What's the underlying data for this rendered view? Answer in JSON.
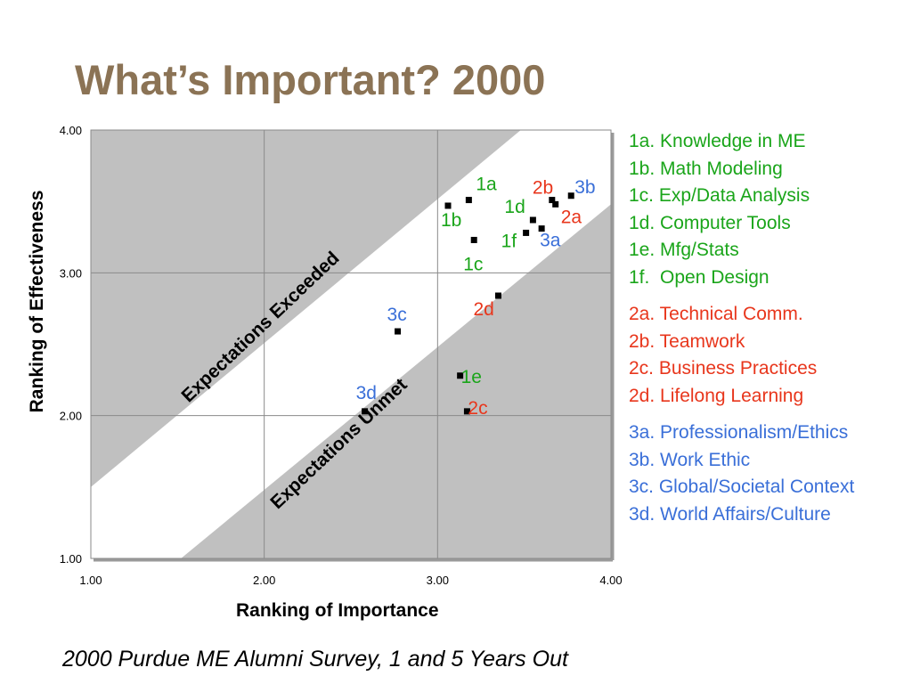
{
  "slide": {
    "title": "What’s Important?  2000",
    "caption": "2000 Purdue ME Alumni Survey, 1 and 5 Years Out"
  },
  "chart_data": {
    "type": "scatter",
    "xlabel": "Ranking of Importance",
    "ylabel": "Ranking of Effectiveness",
    "xlim": [
      1.0,
      4.0
    ],
    "ylim": [
      1.0,
      4.0
    ],
    "x_ticks": [
      "1.00",
      "2.00",
      "3.00",
      "4.00"
    ],
    "y_ticks": [
      "1.00",
      "2.00",
      "3.00",
      "4.00"
    ],
    "grid": true,
    "region_labels": {
      "upper": "Expectations Exceeded",
      "lower": "Expectations Unmet"
    },
    "colors": {
      "group1": "#1aa51a",
      "group2": "#e8361c",
      "group3": "#3a6fd8",
      "shaded": "#c0c0c0",
      "title": "#8b7355"
    },
    "points": [
      {
        "label": "1a",
        "x": 3.18,
        "y": 3.51,
        "group": 1
      },
      {
        "label": "1b",
        "x": 3.06,
        "y": 3.47,
        "group": 1
      },
      {
        "label": "1c",
        "x": 3.21,
        "y": 3.23,
        "group": 1
      },
      {
        "label": "1d",
        "x": 3.55,
        "y": 3.37,
        "group": 1
      },
      {
        "label": "1e",
        "x": 3.13,
        "y": 2.28,
        "group": 1
      },
      {
        "label": "1f",
        "x": 3.51,
        "y": 3.28,
        "group": 1
      },
      {
        "label": "2a",
        "x": 3.68,
        "y": 3.48,
        "group": 2
      },
      {
        "label": "2b",
        "x": 3.66,
        "y": 3.51,
        "group": 2
      },
      {
        "label": "2c",
        "x": 3.17,
        "y": 2.03,
        "group": 2
      },
      {
        "label": "2d",
        "x": 3.35,
        "y": 2.84,
        "group": 2
      },
      {
        "label": "3a",
        "x": 3.6,
        "y": 3.31,
        "group": 3
      },
      {
        "label": "3b",
        "x": 3.77,
        "y": 3.54,
        "group": 3
      },
      {
        "label": "3c",
        "x": 2.77,
        "y": 2.59,
        "group": 3
      },
      {
        "label": "3d",
        "x": 2.58,
        "y": 2.03,
        "group": 3
      }
    ]
  },
  "legend": {
    "group1": [
      "1a. Knowledge in ME",
      "1b. Math Modeling",
      "1c. Exp/Data Analysis",
      "1d. Computer Tools",
      "1e. Mfg/Stats",
      "1f.  Open Design"
    ],
    "group2": [
      "2a. Technical Comm.",
      "2b. Teamwork",
      "2c. Business Practices",
      "2d. Lifelong Learning"
    ],
    "group3": [
      "3a. Professionalism/Ethics",
      "3b. Work Ethic",
      "3c. Global/Societal Context",
      "3d. World Affairs/Culture"
    ]
  }
}
